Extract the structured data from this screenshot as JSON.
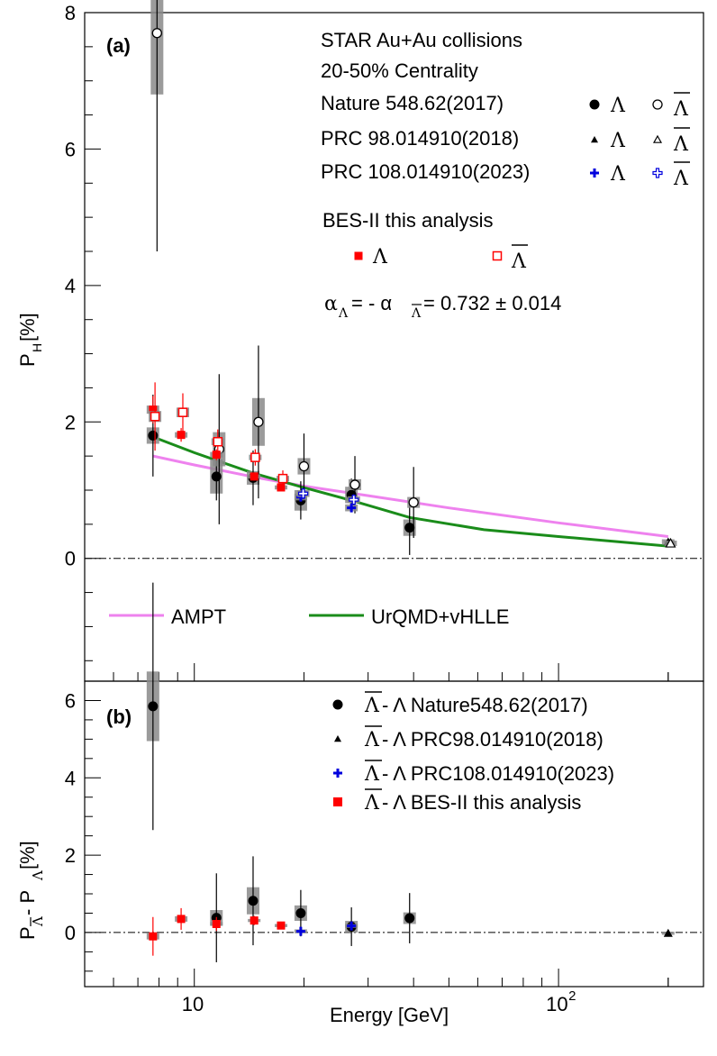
{
  "chart_data": [
    {
      "panel": "(a)",
      "type": "scatter",
      "ylabel": "P",
      "ylabel_sub": "H",
      "ylabel_suffix": " [%]",
      "xscale": "log",
      "xlim": [
        5,
        250
      ],
      "ylim": [
        -1.8,
        8
      ],
      "y_ticks": [
        "8",
        "6",
        "4",
        "2",
        "0"
      ],
      "ref_line": 0,
      "header": [
        "STAR  Au+Au collisions",
        "20-50% Centrality"
      ],
      "legend": [
        {
          "text": "Nature 548.62(2017)",
          "lam": "Λ",
          "antilam": "Λ"
        },
        {
          "text": "PRC 98.014910(2018)",
          "lam": "Λ",
          "antilam": "Λ"
        },
        {
          "text": "PRC 108.014910(2023)",
          "lam": "Λ",
          "antilam": "Λ"
        }
      ],
      "bes_title": "BES-II this analysis",
      "bes_lam": "Λ",
      "bes_antilam": "Λ",
      "alpha_label": {
        "a": "α",
        "sub1": "Λ",
        "mid": " = - α",
        "sub2": "Λ",
        "value": " = 0.732 ± 0.014"
      },
      "model_legend": [
        {
          "name": "AMPT",
          "color": "#ee82ee"
        },
        {
          "name": "UrQMD+vHLLE",
          "color": "#1a8c1a"
        }
      ],
      "series": [
        {
          "name": "Nature 548.62(2017) Λ",
          "marker": "circle-filled",
          "color": "#000000",
          "x": [
            7.7,
            11.5,
            14.5,
            19.6,
            27,
            39
          ],
          "y": [
            1.8,
            1.2,
            1.18,
            0.85,
            0.93,
            0.45
          ],
          "err": [
            0.6,
            0.35,
            0.4,
            0.28,
            0.24,
            0.4
          ],
          "sys": [
            0.12,
            0.25,
            0.1,
            0.15,
            0.12,
            0.12
          ]
        },
        {
          "name": "Nature 548.62(2017) anti-Λ",
          "marker": "circle-open",
          "color": "#000000",
          "x": [
            7.9,
            11.7,
            15.0,
            20.0,
            27.6,
            40
          ],
          "y": [
            7.7,
            1.6,
            2.0,
            1.35,
            1.08,
            0.82
          ],
          "err": [
            3.2,
            1.1,
            1.12,
            0.48,
            0.42,
            0.52
          ],
          "sys": [
            0.9,
            0.25,
            0.35,
            0.12,
            0.08,
            0.08
          ]
        },
        {
          "name": "PRC 98.014910(2018) Λ",
          "marker": "triangle-filled",
          "color": "#000000",
          "x": [
            200
          ],
          "y": [
            0.24
          ],
          "err": [
            0.03
          ],
          "sys": [
            0.04
          ]
        },
        {
          "name": "PRC 98.014910(2018) anti-Λ",
          "marker": "triangle-open",
          "color": "#000000",
          "x": [
            203
          ],
          "y": [
            0.22
          ],
          "err": [
            0.03
          ],
          "sys": [
            0.04
          ]
        },
        {
          "name": "PRC 108.014910(2023) Λ",
          "marker": "cross-filled",
          "color": "#0000dd",
          "x": [
            19.6,
            27
          ],
          "y": [
            0.9,
            0.74
          ],
          "err": [
            0.06,
            0.05
          ],
          "sys": [
            0.05,
            0.05
          ]
        },
        {
          "name": "PRC 108.014910(2023) anti-Λ",
          "marker": "cross-open",
          "color": "#0000dd",
          "x": [
            19.9,
            27.4
          ],
          "y": [
            0.95,
            0.86
          ],
          "err": [
            0.08,
            0.08
          ],
          "sys": [
            0.05,
            0.05
          ]
        },
        {
          "name": "BES-II this analysis Λ",
          "marker": "square-filled",
          "color": "#ff0000",
          "x": [
            7.7,
            9.2,
            11.5,
            14.6,
            17.3
          ],
          "y": [
            2.18,
            1.81,
            1.52,
            1.2,
            1.04
          ],
          "err": [
            0.2,
            0.1,
            0.08,
            0.06,
            0.05
          ],
          "sys": [
            0.06,
            0.04,
            0.04,
            0.03,
            0.03
          ]
        },
        {
          "name": "BES-II this analysis anti-Λ",
          "marker": "square-open",
          "color": "#ff0000",
          "x": [
            7.8,
            9.3,
            11.6,
            14.7,
            17.5
          ],
          "y": [
            2.08,
            2.14,
            1.71,
            1.48,
            1.17
          ],
          "err": [
            0.5,
            0.28,
            0.18,
            0.12,
            0.12
          ],
          "sys": [
            0.08,
            0.07,
            0.05,
            0.04,
            0.04
          ]
        }
      ],
      "curves": [
        {
          "name": "AMPT",
          "color": "#ee82ee",
          "x": [
            7.7,
            10,
            15,
            20,
            30,
            50,
            100,
            200
          ],
          "y": [
            1.5,
            1.37,
            1.18,
            1.06,
            0.92,
            0.74,
            0.52,
            0.32
          ]
        },
        {
          "name": "UrQMD+vHLLE",
          "color": "#1a8c1a",
          "x": [
            7.7,
            10,
            14.5,
            19.6,
            27,
            39,
            62.4,
            100,
            200
          ],
          "y": [
            1.78,
            1.55,
            1.25,
            1.05,
            0.85,
            0.6,
            0.42,
            0.32,
            0.18
          ]
        }
      ]
    },
    {
      "panel": "(b)",
      "type": "scatter",
      "xlabel": "Energy [GeV]",
      "xscale": "log",
      "xlim": [
        5,
        250
      ],
      "ylim": [
        -1.4,
        6.5
      ],
      "y_ticks": [
        "6",
        "4",
        "2",
        "0"
      ],
      "x_ticks": [
        {
          "value": 10,
          "base": "10",
          "exp": ""
        },
        {
          "value": 100,
          "base": "10",
          "exp": "2"
        }
      ],
      "ylabel_parts": {
        "p1": "P",
        "sub1": "Λ",
        "mid": " - P",
        "sub2": "Λ",
        "suffix": " [%]"
      },
      "ref_line": 0,
      "legend": [
        {
          "bar": "Λ",
          "rest": " - Λ Nature548.62(2017)",
          "marker": "circle-filled",
          "color": "#000000"
        },
        {
          "bar": "Λ",
          "rest": " - Λ PRC98.014910(2018)",
          "marker": "triangle-filled",
          "color": "#000000"
        },
        {
          "bar": "Λ",
          "rest": " - Λ PRC108.014910(2023)",
          "marker": "cross-filled",
          "color": "#0000dd"
        },
        {
          "bar": "Λ",
          "rest": " - Λ BES-II this analysis",
          "marker": "square-filled",
          "color": "#ff0000"
        }
      ],
      "series": [
        {
          "name": "Nature548.62(2017)",
          "marker": "circle-filled",
          "color": "#000000",
          "x": [
            7.7,
            11.5,
            14.5,
            19.6,
            27,
            39
          ],
          "y": [
            5.85,
            0.38,
            0.82,
            0.5,
            0.15,
            0.37
          ],
          "err": [
            3.2,
            1.15,
            1.15,
            0.6,
            0.5,
            0.65
          ],
          "sys": [
            0.9,
            0.2,
            0.35,
            0.2,
            0.15,
            0.15
          ]
        },
        {
          "name": "PRC98.014910(2018)",
          "marker": "triangle-filled",
          "color": "#000000",
          "x": [
            200
          ],
          "y": [
            -0.02
          ],
          "err": [
            0.04
          ],
          "sys": [
            0.04
          ]
        },
        {
          "name": "PRC108.014910(2023)",
          "marker": "cross-filled",
          "color": "#0000dd",
          "x": [
            19.6,
            27
          ],
          "y": [
            0.03,
            0.17
          ],
          "err": [
            0.1,
            0.1
          ],
          "sys": [
            0.05,
            0.05
          ]
        },
        {
          "name": "BES-II this analysis",
          "marker": "square-filled",
          "color": "#ff0000",
          "x": [
            7.7,
            9.2,
            11.5,
            14.6,
            17.3
          ],
          "y": [
            -0.1,
            0.35,
            0.22,
            0.31,
            0.18
          ],
          "err": [
            0.5,
            0.28,
            0.18,
            0.12,
            0.1
          ],
          "sys": [
            0.08,
            0.07,
            0.05,
            0.04,
            0.04
          ]
        }
      ]
    }
  ]
}
